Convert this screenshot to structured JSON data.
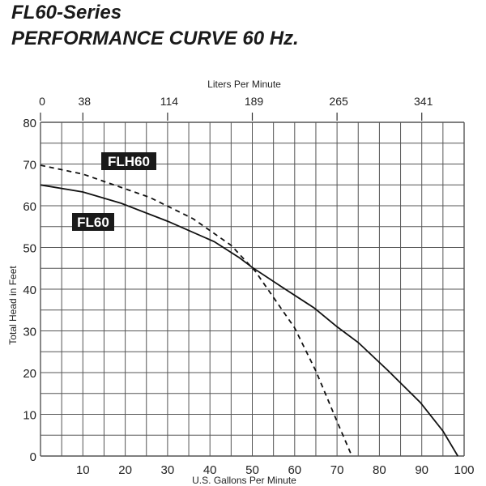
{
  "header": {
    "line1": "FL60-Series",
    "line2": "PERFORMANCE CURVE 60 Hz."
  },
  "chart_data": {
    "type": "line",
    "xlabel": "U.S. Gallons Per Minute",
    "ylabel": "Total Head in Feet",
    "x2label": "Liters Per Minute",
    "xlim": [
      0,
      100
    ],
    "ylim": [
      0,
      80
    ],
    "grid": true,
    "x_ticks": [
      10,
      20,
      30,
      40,
      50,
      60,
      70,
      80,
      90,
      100
    ],
    "y_ticks": [
      0,
      10,
      20,
      30,
      40,
      50,
      60,
      70,
      80
    ],
    "x2_ticks": [
      {
        "gpm": 0,
        "label": "0"
      },
      {
        "gpm": 10,
        "label": "38"
      },
      {
        "gpm": 30,
        "label": "114"
      },
      {
        "gpm": 50,
        "label": "189"
      },
      {
        "gpm": 70,
        "label": "265"
      },
      {
        "gpm": 90,
        "label": "341"
      }
    ],
    "series": [
      {
        "name": "FL60",
        "style": "solid",
        "color": "#111111",
        "x": [
          0,
          10,
          19,
          30,
          41,
          47,
          50,
          57,
          64.6,
          70,
          75,
          82,
          89.7,
          95,
          98.5
        ],
        "y": [
          65,
          63.3,
          60.6,
          56.3,
          51.4,
          47.5,
          45.2,
          40.5,
          35.5,
          31,
          27.2,
          20.5,
          12.8,
          6,
          0
        ]
      },
      {
        "name": "FLH60",
        "style": "dashed",
        "color": "#111111",
        "x": [
          0,
          10,
          25.8,
          36,
          45,
          50.7,
          55,
          60,
          65,
          70,
          73.5
        ],
        "y": [
          69.7,
          67.6,
          62,
          56.9,
          50.5,
          44.3,
          38,
          30.7,
          20.4,
          8.3,
          0
        ]
      }
    ]
  }
}
